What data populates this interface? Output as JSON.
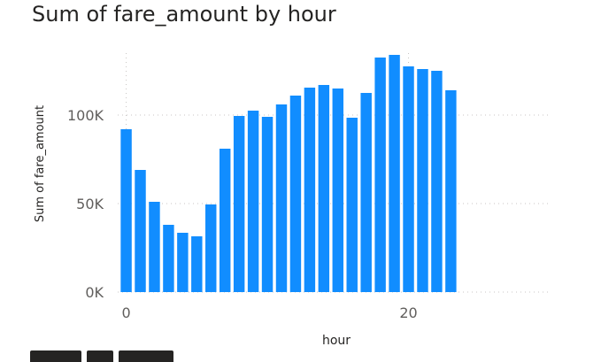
{
  "chart_data": {
    "type": "bar",
    "title": "Sum of fare_amount by hour",
    "xlabel": "hour",
    "ylabel": "Sum of fare_amount",
    "x": [
      0,
      1,
      2,
      3,
      4,
      5,
      6,
      7,
      8,
      9,
      10,
      11,
      12,
      13,
      14,
      15,
      16,
      17,
      18,
      19,
      20,
      21,
      22,
      23
    ],
    "values": [
      92000,
      69000,
      51000,
      38000,
      33500,
      31500,
      49500,
      81000,
      99500,
      102500,
      99000,
      106000,
      111000,
      115500,
      117000,
      115000,
      98500,
      112500,
      132500,
      134000,
      127500,
      126000,
      125000,
      114000
    ],
    "xlim": [
      -0.6,
      30
    ],
    "ylim": [
      0,
      140000
    ],
    "yticks": [
      0,
      50000,
      100000
    ],
    "ytick_labels": [
      "0K",
      "50K",
      "100K"
    ],
    "xticks": [
      0,
      20
    ],
    "xtick_labels": [
      "0",
      "20"
    ],
    "grid": true,
    "bar_color": "#118DFF"
  }
}
